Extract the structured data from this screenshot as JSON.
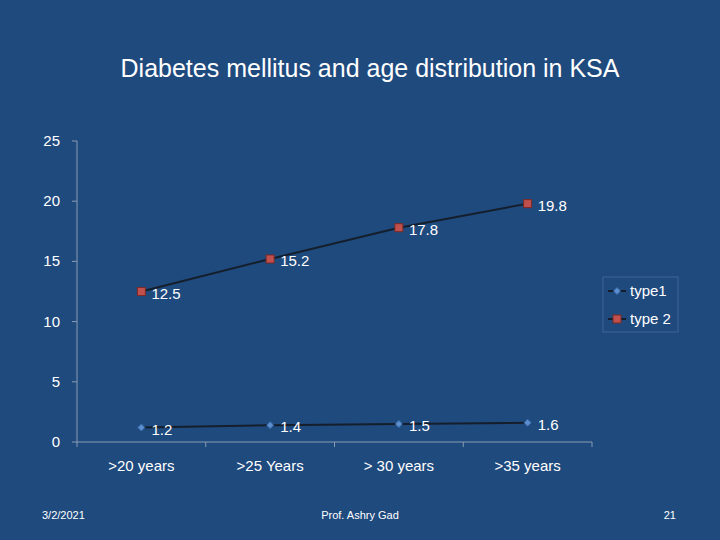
{
  "chart_data": {
    "type": "line",
    "title": "Diabetes mellitus and age distribution in KSA",
    "categories": [
      ">20 years",
      ">25 Years",
      "> 30 years",
      ">35 years"
    ],
    "series": [
      {
        "name": "type1",
        "color": "#5b8fd0",
        "marker": "diamond",
        "line_style": "solid",
        "values": [
          1.2,
          1.4,
          1.5,
          1.6
        ]
      },
      {
        "name": "type 2",
        "color": "#c0504d",
        "marker": "square",
        "line_style": "solid",
        "values": [
          12.5,
          15.2,
          17.8,
          19.8
        ]
      }
    ],
    "ylim": [
      0,
      25
    ],
    "yticks": [
      0,
      5,
      10,
      15,
      20,
      25
    ],
    "grid": false,
    "legend": "right",
    "data_labels": true
  },
  "footer": {
    "date": "3/2/2021",
    "author": "Prof. Ashry Gad",
    "page": "21"
  }
}
